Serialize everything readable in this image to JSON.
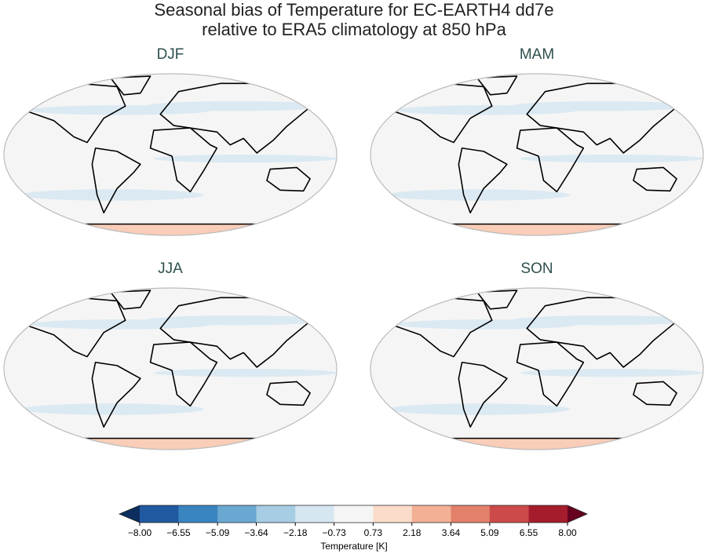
{
  "title": [
    "Seasonal bias of Temperature for EC-EARTH4 dd7e",
    "relative to ERA5 climatology at 850 hPa"
  ],
  "panels": [
    {
      "title": "DJF"
    },
    {
      "title": "MAM"
    },
    {
      "title": "JJA"
    },
    {
      "title": "SON"
    }
  ],
  "colorbar": {
    "label": "Temperature [K]",
    "lim": [
      -8,
      8
    ],
    "ticks": [
      {
        "value": -8,
        "label": "−8.00"
      },
      {
        "value": -6.55,
        "label": "−6.55"
      },
      {
        "value": -5.09,
        "label": "−5.09"
      },
      {
        "value": -3.64,
        "label": "−3.64"
      },
      {
        "value": -2.18,
        "label": "−2.18"
      },
      {
        "value": -0.73,
        "label": "−0.73"
      },
      {
        "value": 0.73,
        "label": "0.73"
      },
      {
        "value": 2.18,
        "label": "2.18"
      },
      {
        "value": 3.64,
        "label": "3.64"
      },
      {
        "value": 5.09,
        "label": "5.09"
      },
      {
        "value": 6.55,
        "label": "6.55"
      },
      {
        "value": 8,
        "label": "8.00"
      }
    ],
    "colors": [
      "#2159a0",
      "#3a84c0",
      "#6aa8d1",
      "#a6cde3",
      "#d6e7f1",
      "#f5f5f5",
      "#fbdccb",
      "#f3b094",
      "#e2806a",
      "#cc4a4a",
      "#a51c2d"
    ],
    "under_color": "#0c2d5e",
    "over_color": "#67001f"
  }
}
